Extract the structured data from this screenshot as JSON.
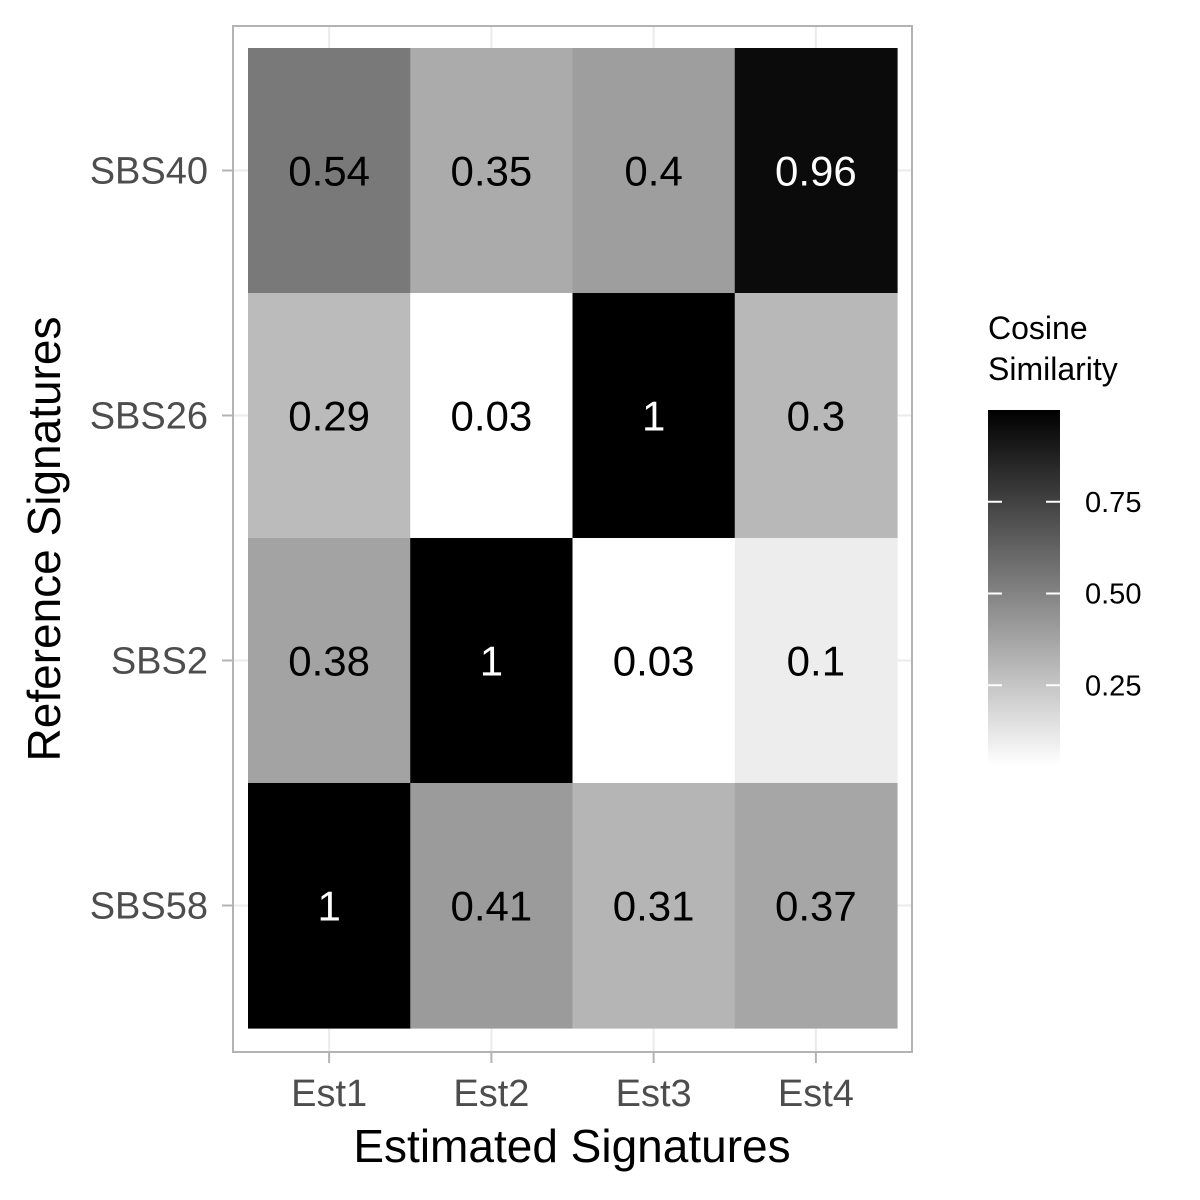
{
  "chart_data": {
    "type": "heatmap",
    "x_categories": [
      "Est1",
      "Est2",
      "Est3",
      "Est4"
    ],
    "y_categories": [
      "SBS40",
      "SBS26",
      "SBS2",
      "SBS58"
    ],
    "values": [
      [
        0.54,
        0.35,
        0.4,
        0.96
      ],
      [
        0.29,
        0.03,
        1,
        0.3
      ],
      [
        0.38,
        1,
        0.03,
        0.1
      ],
      [
        1,
        0.41,
        0.31,
        0.37
      ]
    ],
    "cell_labels": [
      [
        "0.54",
        "0.35",
        "0.4",
        "0.96"
      ],
      [
        "0.29",
        "0.03",
        "1",
        "0.3"
      ],
      [
        "0.38",
        "1",
        "0.03",
        "0.1"
      ],
      [
        "1",
        "0.41",
        "0.31",
        "0.37"
      ]
    ],
    "xlabel": "Estimated Signatures",
    "ylabel": "Reference Signatures",
    "legend": {
      "title_lines": [
        "Cosine",
        "Similarity"
      ],
      "ticks": [
        0.25,
        0.5,
        0.75
      ],
      "tick_labels": [
        "0.25",
        "0.50",
        "0.75"
      ],
      "range": [
        0.03,
        1
      ],
      "placement": "right"
    },
    "color_low": "#ffffff",
    "color_high": "#000000",
    "grid": true
  }
}
